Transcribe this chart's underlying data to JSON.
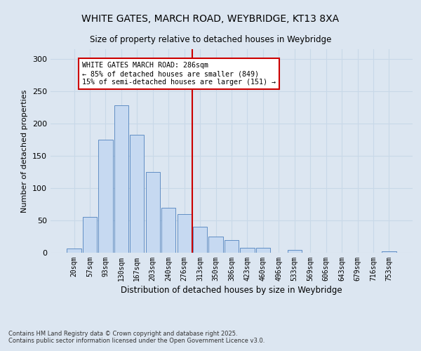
{
  "title": "WHITE GATES, MARCH ROAD, WEYBRIDGE, KT13 8XA",
  "subtitle": "Size of property relative to detached houses in Weybridge",
  "xlabel": "Distribution of detached houses by size in Weybridge",
  "ylabel": "Number of detached properties",
  "categories": [
    "20sqm",
    "57sqm",
    "93sqm",
    "130sqm",
    "167sqm",
    "203sqm",
    "240sqm",
    "276sqm",
    "313sqm",
    "350sqm",
    "386sqm",
    "423sqm",
    "460sqm",
    "496sqm",
    "533sqm",
    "569sqm",
    "606sqm",
    "643sqm",
    "679sqm",
    "716sqm",
    "753sqm"
  ],
  "values": [
    7,
    55,
    175,
    228,
    183,
    125,
    70,
    60,
    40,
    25,
    20,
    8,
    8,
    0,
    4,
    0,
    0,
    0,
    0,
    0,
    2
  ],
  "bar_color": "#c6d9f1",
  "bar_edge_color": "#4f81bd",
  "grid_color": "#c8d8e8",
  "background_color": "#dce6f1",
  "vline_x": 7.5,
  "vline_color": "#cc0000",
  "annotation_text": "WHITE GATES MARCH ROAD: 286sqm\n← 85% of detached houses are smaller (849)\n15% of semi-detached houses are larger (151) →",
  "annotation_box_color": "#ffffff",
  "annotation_border_color": "#cc0000",
  "ylim": [
    0,
    315
  ],
  "yticks": [
    0,
    50,
    100,
    150,
    200,
    250,
    300
  ],
  "footer_line1": "Contains HM Land Registry data © Crown copyright and database right 2025.",
  "footer_line2": "Contains public sector information licensed under the Open Government Licence v3.0."
}
